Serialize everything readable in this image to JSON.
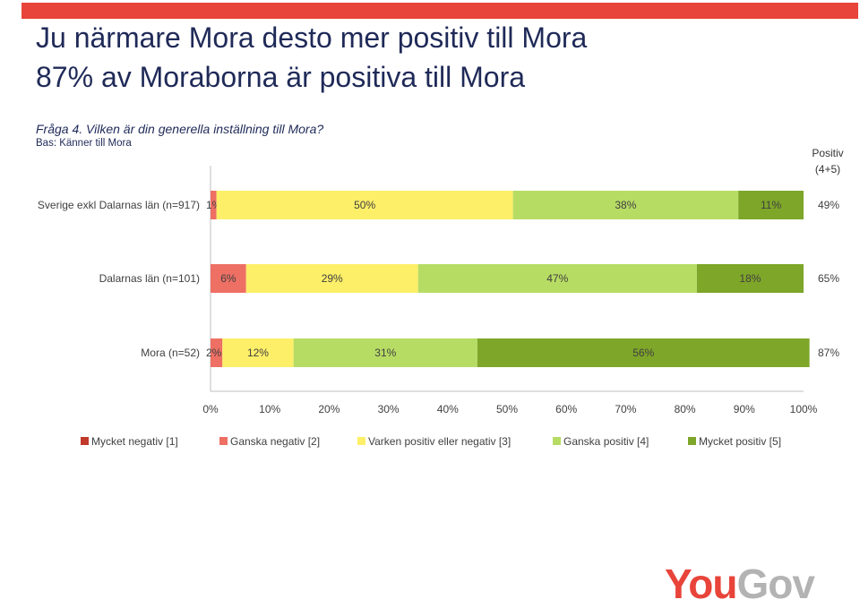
{
  "header": {
    "title_line1": "Ju närmare Mora desto mer positiv till Mora",
    "title_line2": "87% av Moraborna är positiva till Mora",
    "question": "Fråga 4. Vilken är din generella inställning till Mora?",
    "base": "Bas: Känner till Mora",
    "positive_heading_line1": "Positiv",
    "positive_heading_line2": "(4+5)"
  },
  "chart_data": {
    "type": "bar",
    "orientation": "horizontal",
    "stacked": true,
    "categories": [
      "Sverige exkl Dalarnas län (n=917)",
      "Dalarnas län (n=101)",
      "Mora (n=52)"
    ],
    "series": [
      {
        "name": "Mycket negativ [1]",
        "color": "#c0392b",
        "values": [
          0,
          0,
          0
        ],
        "labels": [
          "",
          "",
          ""
        ]
      },
      {
        "name": "Ganska negativ [2]",
        "color": "#ee6f63",
        "values": [
          1,
          6,
          2
        ],
        "labels": [
          "1%",
          "6%",
          "2%"
        ]
      },
      {
        "name": "Varken positiv eller negativ [3]",
        "color": "#fdef68",
        "values": [
          50,
          29,
          12
        ],
        "labels": [
          "50%",
          "29%",
          "12%"
        ]
      },
      {
        "name": "Ganska positiv [4]",
        "color": "#b7dc64",
        "values": [
          38,
          47,
          31
        ],
        "labels": [
          "38%",
          "47%",
          "31%"
        ]
      },
      {
        "name": "Mycket positiv [5]",
        "color": "#7ea629",
        "values": [
          11,
          18,
          56
        ],
        "labels": [
          "11%",
          "18%",
          "56%"
        ]
      }
    ],
    "positive_totals": [
      "49%",
      "65%",
      "87%"
    ],
    "xlim": [
      0,
      100
    ],
    "xticks": [
      "0%",
      "10%",
      "20%",
      "30%",
      "40%",
      "50%",
      "60%",
      "70%",
      "80%",
      "90%",
      "100%"
    ],
    "legend_position": "bottom",
    "grid": false
  },
  "logo": {
    "part1": "You",
    "part2": "Gov"
  }
}
